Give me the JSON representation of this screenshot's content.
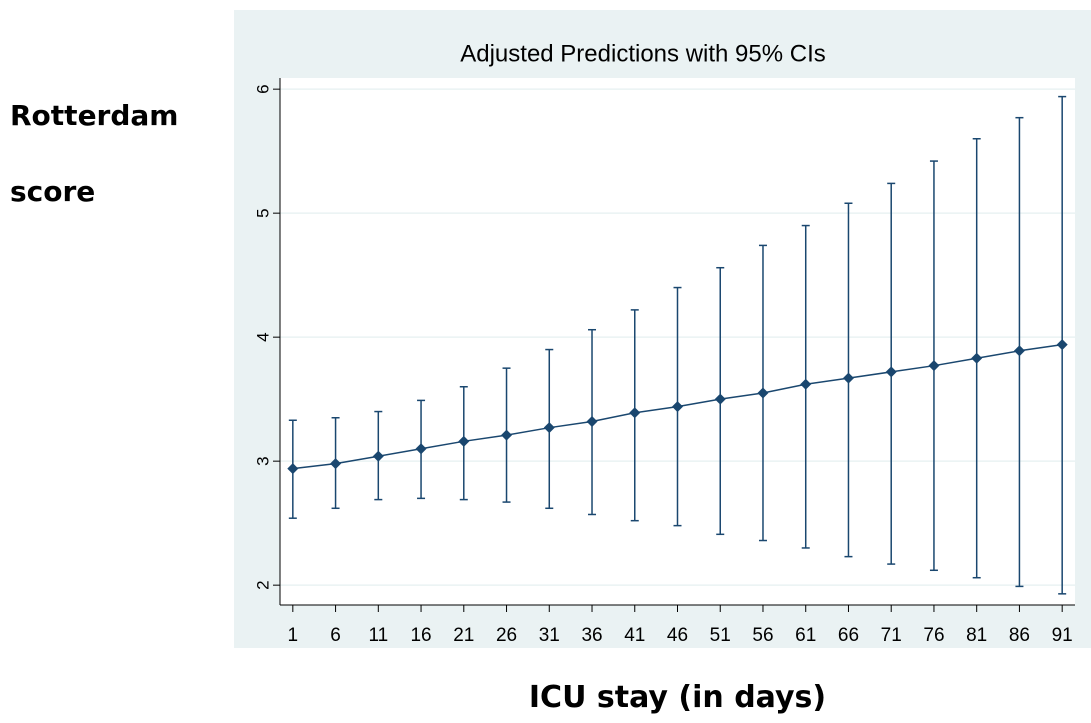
{
  "chart_data": {
    "type": "line",
    "title": "Adjusted Predictions with 95% CIs",
    "y_label": "Rotterdam score",
    "x_label": "ICU stay (in days)",
    "x": [
      1,
      6,
      11,
      16,
      21,
      26,
      31,
      36,
      41,
      46,
      51,
      56,
      61,
      66,
      71,
      76,
      81,
      86,
      91
    ],
    "values": [
      2.94,
      2.98,
      3.04,
      3.1,
      3.16,
      3.21,
      3.27,
      3.32,
      3.39,
      3.44,
      3.5,
      3.55,
      3.62,
      3.67,
      3.72,
      3.77,
      3.83,
      3.89,
      3.94
    ],
    "lower": [
      2.54,
      2.62,
      2.69,
      2.7,
      2.69,
      2.67,
      2.62,
      2.57,
      2.52,
      2.48,
      2.41,
      2.36,
      2.3,
      2.23,
      2.17,
      2.12,
      2.06,
      1.99,
      1.93
    ],
    "upper": [
      3.33,
      3.35,
      3.4,
      3.49,
      3.6,
      3.75,
      3.9,
      4.06,
      4.22,
      4.4,
      4.56,
      4.74,
      4.9,
      5.08,
      5.24,
      5.42,
      5.6,
      5.77,
      5.94
    ],
    "color": "#1a476f",
    "xlim": [
      -0.5,
      92.5
    ],
    "xticks": [
      1,
      6,
      11,
      16,
      21,
      26,
      31,
      36,
      41,
      46,
      51,
      56,
      61,
      66,
      71,
      76,
      81,
      86,
      91
    ],
    "ylim": [
      1.84,
      6.09
    ],
    "yticks": [
      2,
      3,
      4,
      5,
      6
    ],
    "grid": true
  }
}
